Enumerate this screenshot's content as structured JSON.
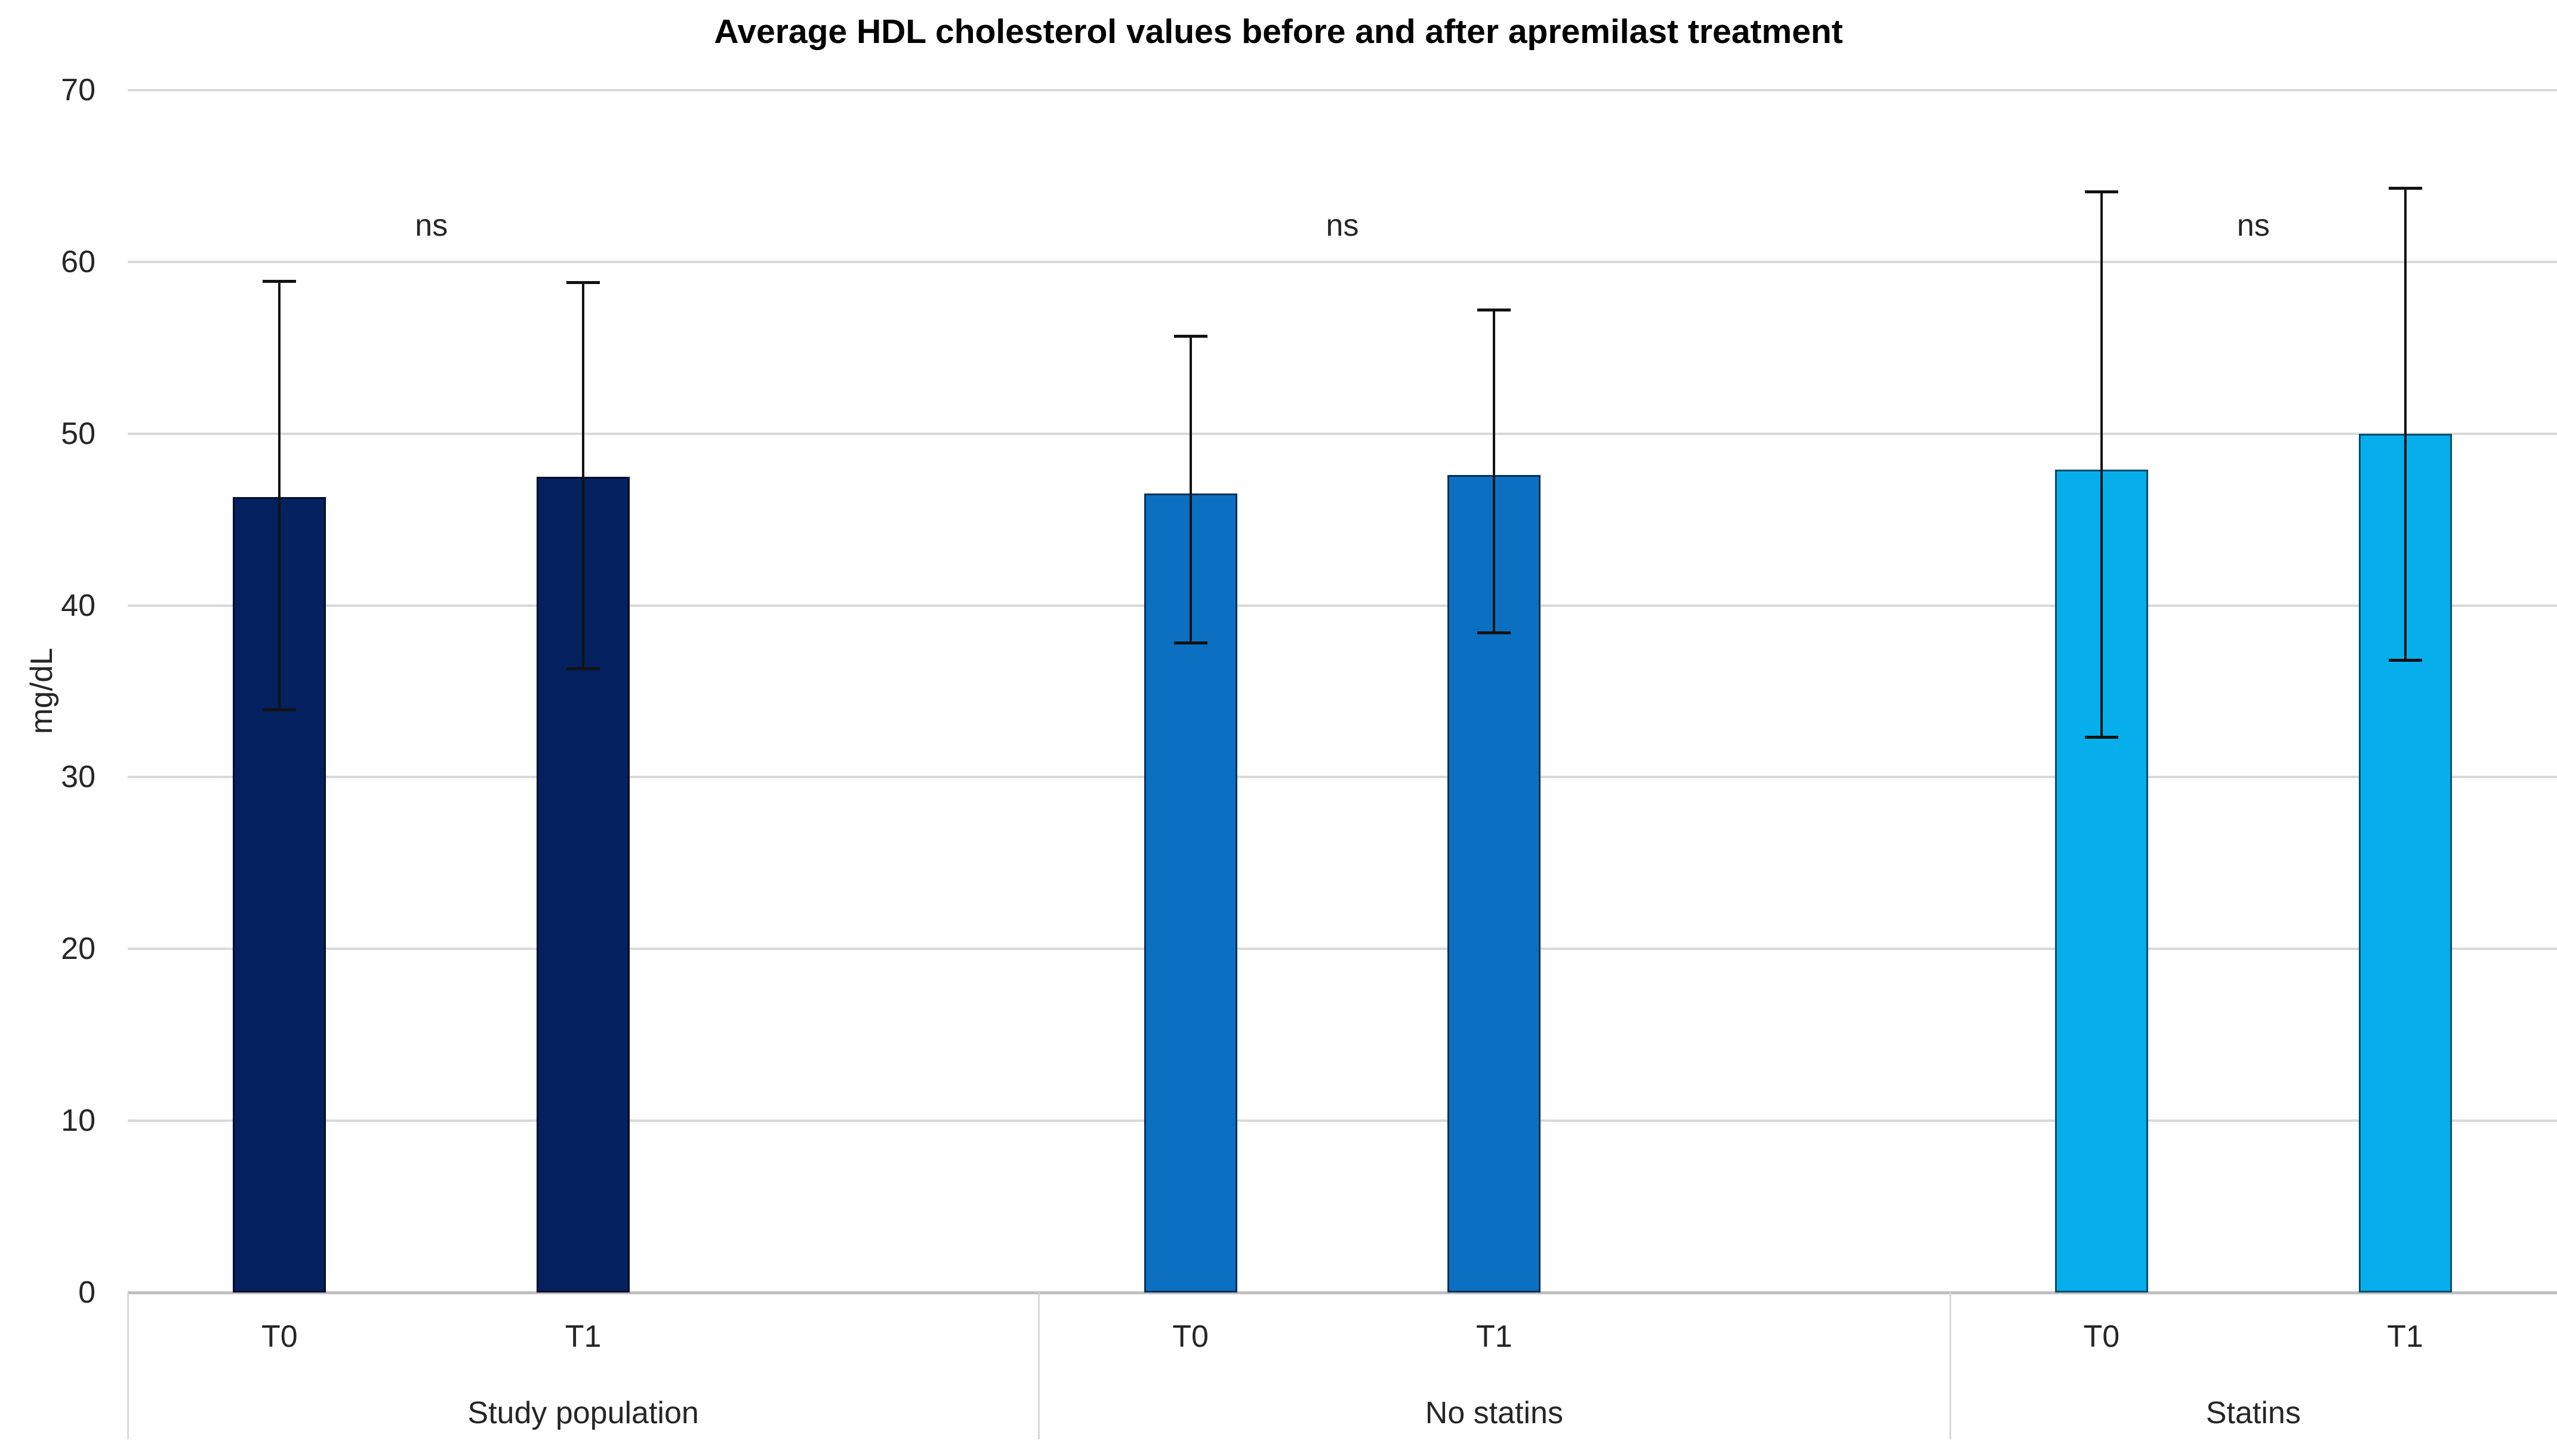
{
  "title": "Average HDL cholesterol values before and after apremilast treatment",
  "chart_data": {
    "type": "bar",
    "title": "Average HDL cholesterol values before and after apremilast treatment",
    "xlabel": "",
    "ylabel": "mg/dL",
    "ylim": [
      0,
      70
    ],
    "yticks": [
      0,
      10,
      20,
      30,
      40,
      50,
      60,
      70
    ],
    "grid": true,
    "legend": "none",
    "error_bars": true,
    "groups": [
      {
        "label": "Study population",
        "color": "#03215f",
        "annotation": "ns",
        "bars": [
          {
            "label": "T0",
            "value": 46.3,
            "err_up": 12.6,
            "err_down": 12.4
          },
          {
            "label": "T1",
            "value": 47.5,
            "err_up": 11.3,
            "err_down": 11.2
          }
        ]
      },
      {
        "label": "No statins",
        "color": "#0b70c2",
        "annotation": "ns",
        "bars": [
          {
            "label": "T0",
            "value": 46.5,
            "err_up": 9.2,
            "err_down": 8.7
          },
          {
            "label": "T1",
            "value": 47.6,
            "err_up": 9.6,
            "err_down": 9.2
          }
        ]
      },
      {
        "label": "Statins",
        "color": "#06aeec",
        "annotation": "ns",
        "bars": [
          {
            "label": "T0",
            "value": 47.9,
            "err_up": 16.2,
            "err_down": 15.6
          },
          {
            "label": "T1",
            "value": 50.0,
            "err_up": 14.3,
            "err_down": 13.2
          }
        ]
      }
    ],
    "colors": {
      "gridline": "#d9d9d9",
      "axis_line": "#bfbfbf",
      "error_bar": "#121212",
      "text": "#262626",
      "title_text": "#000000",
      "background": "#ffffff"
    }
  }
}
